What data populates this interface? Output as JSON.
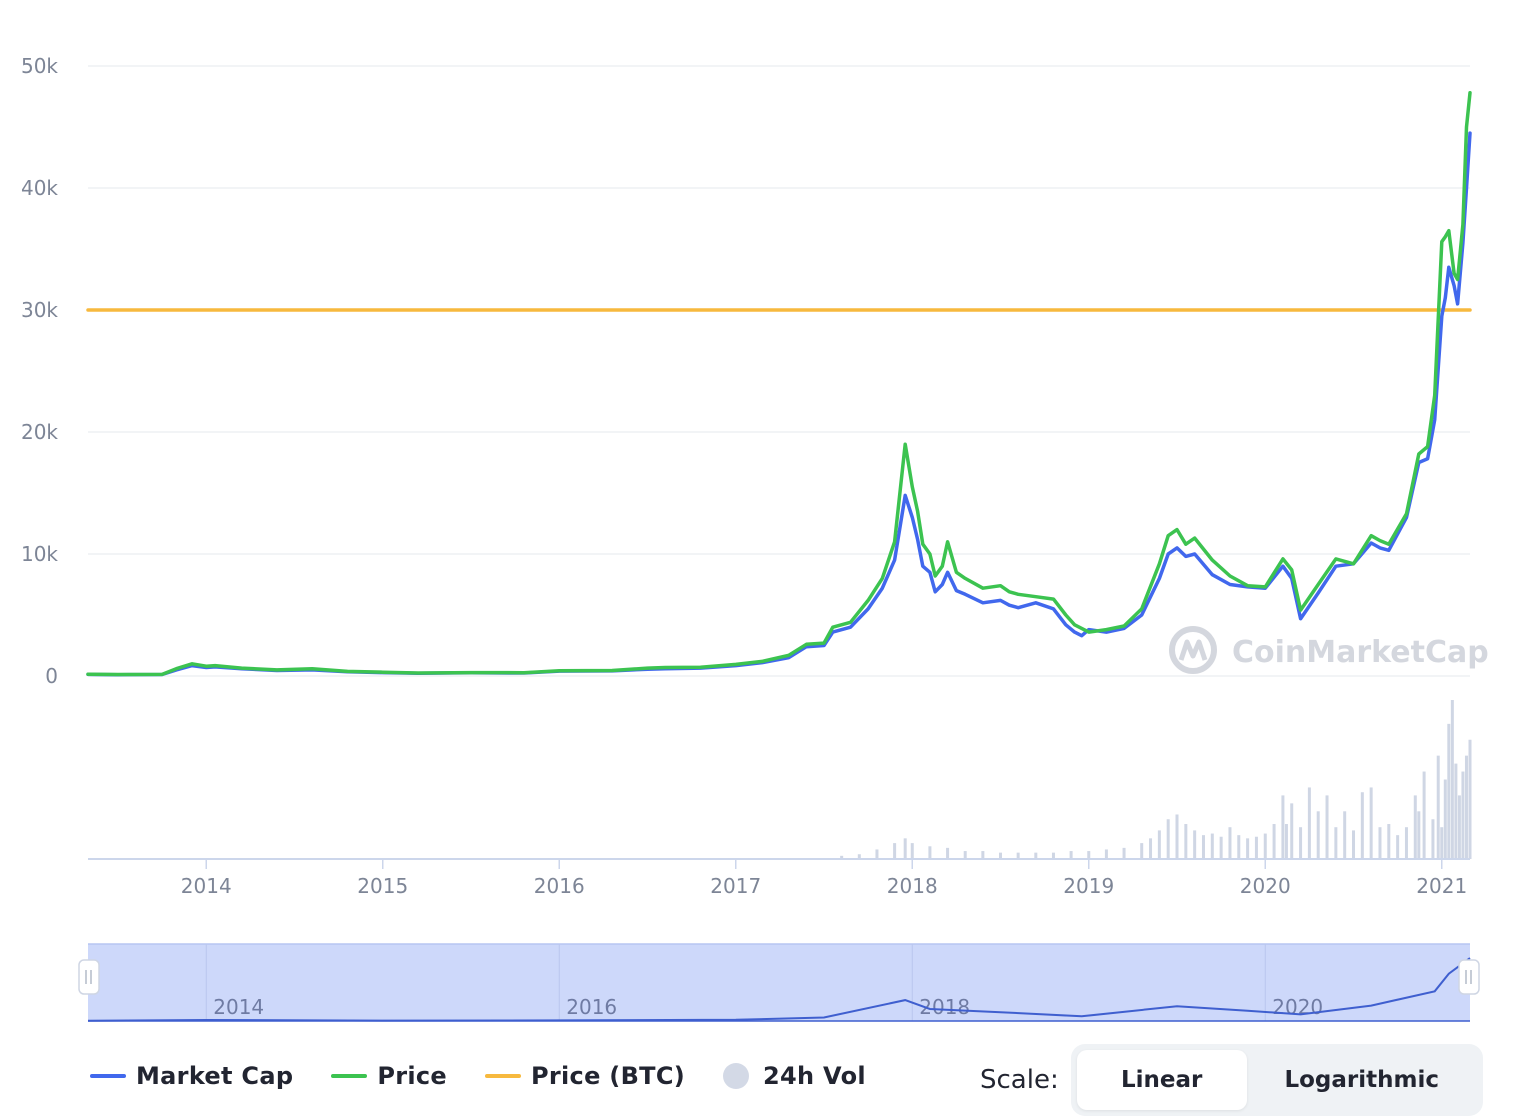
{
  "chart_data": {
    "type": "line",
    "y_ticks": [
      "0",
      "10k",
      "20k",
      "30k",
      "40k",
      "50k"
    ],
    "ylim": [
      0,
      50000
    ],
    "x_ticks": [
      "2014",
      "2015",
      "2016",
      "2017",
      "2018",
      "2019",
      "2020",
      "2021"
    ],
    "xlim": [
      2013.33,
      2021.16
    ],
    "navigator_ticks": [
      "2014",
      "2016",
      "2018",
      "2020"
    ],
    "watermark": "CoinMarketCap",
    "colors": {
      "market_cap": "#4168ed",
      "price": "#3cc350",
      "price_btc": "#f7b93e",
      "volume": "#cfd6e4",
      "navigator_fill": "#cdd8fa",
      "navigator_line": "#3f5fcf",
      "grid": "#eef0f4"
    },
    "series": [
      {
        "name": "Market Cap",
        "color": "#4168ed",
        "x": [
          2013.33,
          2013.5,
          2013.75,
          2013.83,
          2013.92,
          2014.0,
          2014.05,
          2014.2,
          2014.4,
          2014.6,
          2014.8,
          2015.0,
          2015.2,
          2015.5,
          2015.8,
          2016.0,
          2016.3,
          2016.5,
          2016.6,
          2016.8,
          2017.0,
          2017.15,
          2017.3,
          2017.4,
          2017.5,
          2017.55,
          2017.65,
          2017.75,
          2017.83,
          2017.9,
          2017.96,
          2018.0,
          2018.03,
          2018.06,
          2018.1,
          2018.13,
          2018.17,
          2018.2,
          2018.25,
          2018.3,
          2018.4,
          2018.5,
          2018.55,
          2018.6,
          2018.7,
          2018.8,
          2018.87,
          2018.92,
          2018.96,
          2019.0,
          2019.1,
          2019.2,
          2019.3,
          2019.4,
          2019.45,
          2019.5,
          2019.55,
          2019.6,
          2019.7,
          2019.8,
          2019.9,
          2020.0,
          2020.1,
          2020.15,
          2020.2,
          2020.3,
          2020.4,
          2020.5,
          2020.6,
          2020.65,
          2020.7,
          2020.8,
          2020.87,
          2020.92,
          2020.96,
          2021.0,
          2021.02,
          2021.04,
          2021.07,
          2021.09,
          2021.12,
          2021.14,
          2021.16
        ],
        "values": [
          130,
          110,
          120,
          500,
          850,
          700,
          750,
          600,
          450,
          500,
          350,
          280,
          230,
          260,
          250,
          400,
          420,
          560,
          600,
          650,
          850,
          1100,
          1500,
          2400,
          2500,
          3600,
          4000,
          5500,
          7200,
          9500,
          14800,
          13000,
          11200,
          9000,
          8500,
          6900,
          7500,
          8500,
          7000,
          6700,
          6000,
          6200,
          5800,
          5600,
          6000,
          5500,
          4200,
          3600,
          3300,
          3800,
          3600,
          3900,
          5000,
          8000,
          10000,
          10500,
          9800,
          10000,
          8300,
          7500,
          7300,
          7200,
          9000,
          8000,
          4700,
          6800,
          9000,
          9200,
          10900,
          10500,
          10300,
          13000,
          17500,
          17800,
          21000,
          29500,
          31000,
          33500,
          32000,
          30500,
          35500,
          40000,
          44500
        ]
      },
      {
        "name": "Price",
        "color": "#3cc350",
        "x": [
          2013.33,
          2013.5,
          2013.75,
          2013.83,
          2013.92,
          2014.0,
          2014.05,
          2014.2,
          2014.4,
          2014.6,
          2014.8,
          2015.0,
          2015.2,
          2015.5,
          2015.8,
          2016.0,
          2016.3,
          2016.5,
          2016.6,
          2016.8,
          2017.0,
          2017.15,
          2017.3,
          2017.4,
          2017.5,
          2017.55,
          2017.65,
          2017.75,
          2017.83,
          2017.9,
          2017.96,
          2018.0,
          2018.03,
          2018.06,
          2018.1,
          2018.13,
          2018.17,
          2018.2,
          2018.25,
          2018.3,
          2018.4,
          2018.5,
          2018.55,
          2018.6,
          2018.7,
          2018.8,
          2018.87,
          2018.92,
          2018.96,
          2019.0,
          2019.1,
          2019.2,
          2019.3,
          2019.4,
          2019.45,
          2019.5,
          2019.55,
          2019.6,
          2019.7,
          2019.8,
          2019.9,
          2020.0,
          2020.1,
          2020.15,
          2020.2,
          2020.3,
          2020.4,
          2020.5,
          2020.6,
          2020.65,
          2020.7,
          2020.8,
          2020.87,
          2020.92,
          2020.96,
          2021.0,
          2021.02,
          2021.04,
          2021.07,
          2021.09,
          2021.12,
          2021.14,
          2021.16
        ],
        "values": [
          140,
          120,
          130,
          600,
          1000,
          800,
          850,
          650,
          500,
          600,
          380,
          310,
          250,
          280,
          270,
          430,
          450,
          650,
          700,
          720,
          950,
          1200,
          1700,
          2600,
          2700,
          4000,
          4400,
          6200,
          8000,
          11000,
          19000,
          15500,
          13500,
          10800,
          10000,
          8200,
          9000,
          11000,
          8500,
          8000,
          7200,
          7400,
          6900,
          6700,
          6500,
          6300,
          5000,
          4200,
          3900,
          3600,
          3800,
          4100,
          5500,
          9200,
          11500,
          12000,
          10800,
          11300,
          9500,
          8200,
          7400,
          7300,
          9600,
          8700,
          5400,
          7500,
          9600,
          9200,
          11500,
          11100,
          10800,
          13300,
          18200,
          18800,
          23000,
          35600,
          36000,
          36500,
          33000,
          32500,
          37000,
          45000,
          47800
        ]
      },
      {
        "name": "Price (BTC)",
        "color": "#f7b93e",
        "x": [
          2013.33,
          2021.16
        ],
        "values": [
          30000,
          30000
        ]
      },
      {
        "name": "24h Vol",
        "color": "#cfd6e4",
        "x": [
          2017.6,
          2017.7,
          2017.8,
          2017.9,
          2017.96,
          2018.0,
          2018.1,
          2018.2,
          2018.3,
          2018.4,
          2018.5,
          2018.6,
          2018.7,
          2018.8,
          2018.9,
          2019.0,
          2019.1,
          2019.2,
          2019.3,
          2019.35,
          2019.4,
          2019.45,
          2019.5,
          2019.55,
          2019.6,
          2019.65,
          2019.7,
          2019.75,
          2019.8,
          2019.85,
          2019.9,
          2019.95,
          2020.0,
          2020.05,
          2020.1,
          2020.12,
          2020.15,
          2020.2,
          2020.25,
          2020.3,
          2020.35,
          2020.4,
          2020.45,
          2020.5,
          2020.55,
          2020.6,
          2020.65,
          2020.7,
          2020.75,
          2020.8,
          2020.85,
          2020.87,
          2020.9,
          2020.95,
          2020.98,
          2021.0,
          2021.02,
          2021.04,
          2021.06,
          2021.08,
          2021.1,
          2021.12,
          2021.14,
          2021.16
        ],
        "values": [
          0.02,
          0.03,
          0.06,
          0.1,
          0.13,
          0.1,
          0.08,
          0.07,
          0.05,
          0.05,
          0.04,
          0.04,
          0.04,
          0.04,
          0.05,
          0.05,
          0.06,
          0.07,
          0.1,
          0.13,
          0.18,
          0.25,
          0.28,
          0.22,
          0.18,
          0.15,
          0.16,
          0.14,
          0.2,
          0.15,
          0.13,
          0.14,
          0.16,
          0.22,
          0.4,
          0.22,
          0.35,
          0.2,
          0.45,
          0.3,
          0.4,
          0.2,
          0.3,
          0.18,
          0.42,
          0.45,
          0.2,
          0.22,
          0.15,
          0.2,
          0.4,
          0.3,
          0.55,
          0.25,
          0.65,
          0.2,
          0.5,
          0.85,
          1.0,
          0.6,
          0.4,
          0.55,
          0.65,
          0.75
        ]
      }
    ],
    "navigator_series": {
      "x": [
        2013.33,
        2014.0,
        2015.0,
        2016.0,
        2017.0,
        2017.5,
        2017.96,
        2018.1,
        2018.5,
        2018.96,
        2019.5,
        2019.9,
        2020.2,
        2020.6,
        2020.96,
        2021.04,
        2021.16
      ],
      "values": [
        130,
        700,
        280,
        400,
        850,
        2500,
        14800,
        8500,
        6200,
        3300,
        10500,
        7300,
        4700,
        10900,
        21000,
        33500,
        44500
      ]
    }
  },
  "legend": {
    "market_cap": "Market Cap",
    "price": "Price",
    "price_btc": "Price (BTC)",
    "vol": "24h Vol"
  },
  "scale": {
    "label": "Scale:",
    "linear": "Linear",
    "log": "Logarithmic"
  }
}
